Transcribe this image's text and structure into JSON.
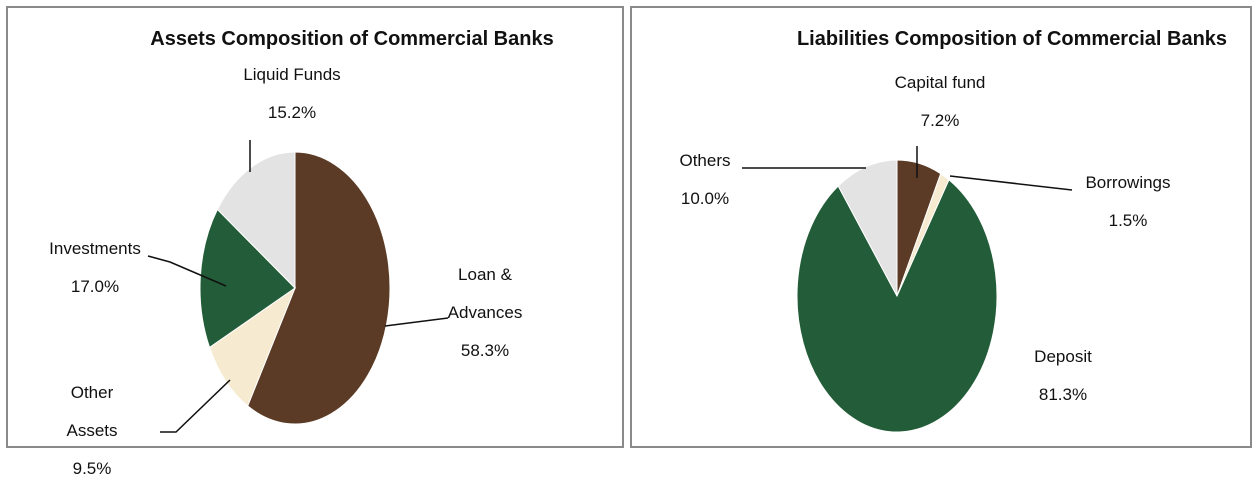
{
  "chart_data": [
    {
      "type": "pie",
      "title": "Assets Composition of Commercial Banks",
      "categories": [
        "Loan & Advances",
        "Other Assets",
        "Investments",
        "Liquid Funds"
      ],
      "values": [
        58.3,
        9.5,
        17.0,
        15.2
      ],
      "value_labels": [
        "58.3%",
        "9.5%",
        "17.0%",
        "15.2%"
      ],
      "colors": [
        "#5b3b25",
        "#f6ead0",
        "#225c38",
        "#e3e3e3"
      ]
    },
    {
      "type": "pie",
      "title": "Liabilities Composition of Commercial Banks",
      "categories": [
        "Capital fund",
        "Borrowings",
        "Deposit",
        "Others"
      ],
      "values": [
        7.2,
        1.5,
        81.3,
        10.0
      ],
      "value_labels": [
        "7.2%",
        "1.5%",
        "81.3%",
        "10.0%"
      ],
      "colors": [
        "#5b3b25",
        "#f6ead0",
        "#225c38",
        "#e3e3e3"
      ]
    }
  ]
}
